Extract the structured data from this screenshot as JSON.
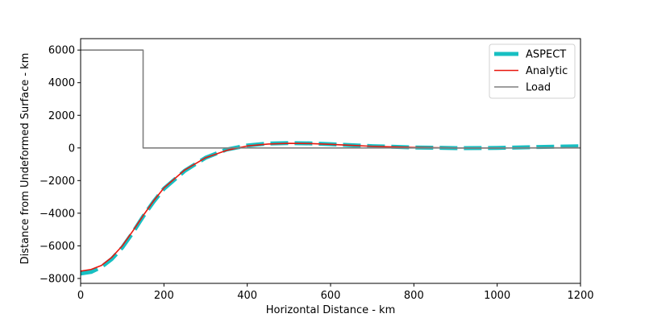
{
  "chart_data": {
    "type": "line",
    "xlabel": "Horizontal Distance - km",
    "ylabel": "Distance from Undeformed Surface - km",
    "xlim": [
      0,
      1200
    ],
    "ylim": [
      -8300,
      6700
    ],
    "xticks": [
      0,
      200,
      400,
      600,
      800,
      1000,
      1200
    ],
    "yticks": [
      -8000,
      -6000,
      -4000,
      -2000,
      0,
      2000,
      4000,
      6000
    ],
    "grid": false,
    "legend": "top-right",
    "series": [
      {
        "name": "ASPECT",
        "color": "#17bfc2",
        "style": "dashed",
        "x": [
          0,
          25,
          50,
          75,
          100,
          125,
          150,
          175,
          200,
          250,
          300,
          350,
          400,
          450,
          500,
          550,
          600,
          650,
          700,
          800,
          900,
          1000,
          1100,
          1200
        ],
        "y": [
          -7700,
          -7600,
          -7300,
          -6800,
          -6100,
          -5200,
          -4200,
          -3300,
          -2500,
          -1400,
          -600,
          -100,
          150,
          270,
          300,
          280,
          230,
          170,
          110,
          30,
          -10,
          0,
          60,
          100
        ]
      },
      {
        "name": "Analytic",
        "color": "#e8170d",
        "style": "solid",
        "x": [
          0,
          25,
          50,
          75,
          100,
          125,
          150,
          175,
          200,
          250,
          300,
          350,
          400,
          450,
          500,
          550,
          600,
          650,
          700,
          800,
          900,
          1000,
          1100,
          1200
        ],
        "y": [
          -7550,
          -7450,
          -7200,
          -6700,
          -6000,
          -5100,
          -4150,
          -3250,
          -2450,
          -1350,
          -600,
          -150,
          120,
          240,
          280,
          270,
          220,
          160,
          100,
          30,
          0,
          0,
          5,
          5
        ]
      },
      {
        "name": "Load",
        "color": "#7f7f7f",
        "style": "solid",
        "x": [
          0,
          150,
          150,
          1200
        ],
        "y": [
          6000,
          6000,
          0,
          0
        ]
      }
    ]
  }
}
